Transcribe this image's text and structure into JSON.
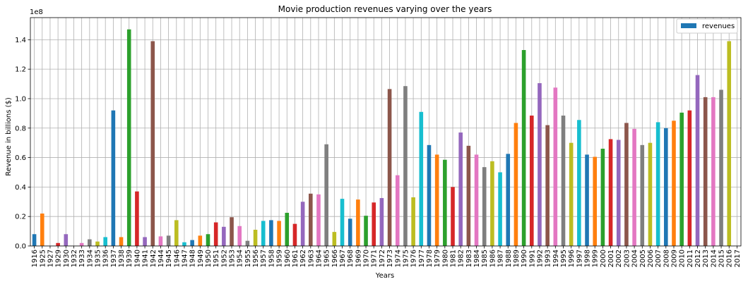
{
  "chart_data": {
    "type": "bar",
    "title": "Movie production revenues varying over the years",
    "xlabel": "Years",
    "ylabel": "Revenue in billions ($)",
    "y_offset_label": "1e8",
    "ylim": [
      0,
      155000000
    ],
    "yticks": [
      0,
      20000000,
      40000000,
      60000000,
      80000000,
      100000000,
      120000000,
      140000000
    ],
    "ytick_labels": [
      "0.0",
      "0.2",
      "0.4",
      "0.6",
      "0.8",
      "1.0",
      "1.2",
      "1.4"
    ],
    "grid": true,
    "legend": {
      "placement": "top-right",
      "entry": "revenues",
      "color": "#1f77b4"
    },
    "palette": [
      "#1f77b4",
      "#ff7f0e",
      "#2ca02c",
      "#d62728",
      "#9467bd",
      "#8c564b",
      "#e377c2",
      "#7f7f7f",
      "#bcbd22",
      "#17becf"
    ],
    "categories": [
      "1916",
      "1925",
      "1927",
      "1929",
      "1930",
      "1932",
      "1933",
      "1934",
      "1935",
      "1936",
      "1937",
      "1938",
      "1939",
      "1940",
      "1941",
      "1942",
      "1944",
      "1945",
      "1946",
      "1947",
      "1948",
      "1949",
      "1950",
      "1951",
      "1952",
      "1953",
      "1954",
      "1955",
      "1956",
      "1957",
      "1958",
      "1959",
      "1960",
      "1961",
      "1962",
      "1963",
      "1964",
      "1965",
      "1966",
      "1967",
      "1968",
      "1969",
      "1970",
      "1971",
      "1972",
      "1973",
      "1974",
      "1975",
      "1976",
      "1977",
      "1978",
      "1979",
      "1980",
      "1981",
      "1982",
      "1983",
      "1984",
      "1985",
      "1986",
      "1987",
      "1988",
      "1989",
      "1990",
      "1991",
      "1992",
      "1993",
      "1994",
      "1995",
      "1996",
      "1997",
      "1998",
      "1999",
      "2000",
      "2001",
      "2002",
      "2003",
      "2004",
      "2005",
      "2006",
      "2007",
      "2008",
      "2009",
      "2010",
      "2011",
      "2012",
      "2013",
      "2014",
      "2015",
      "2016",
      "2017"
    ],
    "values": [
      8000000,
      22000000,
      0,
      2000000,
      8000000,
      0,
      2000000,
      4500000,
      3000000,
      6000000,
      92000000,
      6000000,
      147000000,
      37000000,
      6000000,
      139000000,
      6500000,
      7000000,
      17500000,
      2500000,
      4000000,
      7000000,
      8000000,
      16000000,
      13000000,
      19500000,
      13500000,
      3500000,
      11000000,
      17000000,
      17500000,
      17000000,
      22500000,
      15000000,
      30000000,
      35500000,
      35000000,
      69000000,
      9500000,
      32000000,
      18500000,
      31500000,
      20500000,
      29500000,
      32500000,
      106500000,
      48000000,
      108500000,
      33000000,
      91000000,
      68500000,
      62000000,
      58500000,
      40000000,
      77000000,
      68000000,
      62000000,
      53500000,
      57500000,
      50000000,
      62500000,
      83500000,
      133000000,
      88500000,
      110500000,
      82000000,
      107500000,
      88500000,
      70000000,
      85500000,
      62000000,
      60500000,
      66000000,
      72500000,
      72000000,
      83500000,
      79500000,
      68500000,
      70000000,
      84000000,
      80000000,
      85000000,
      90500000,
      92000000,
      116000000,
      101000000,
      101000000,
      106000000,
      139000000,
      0
    ]
  }
}
